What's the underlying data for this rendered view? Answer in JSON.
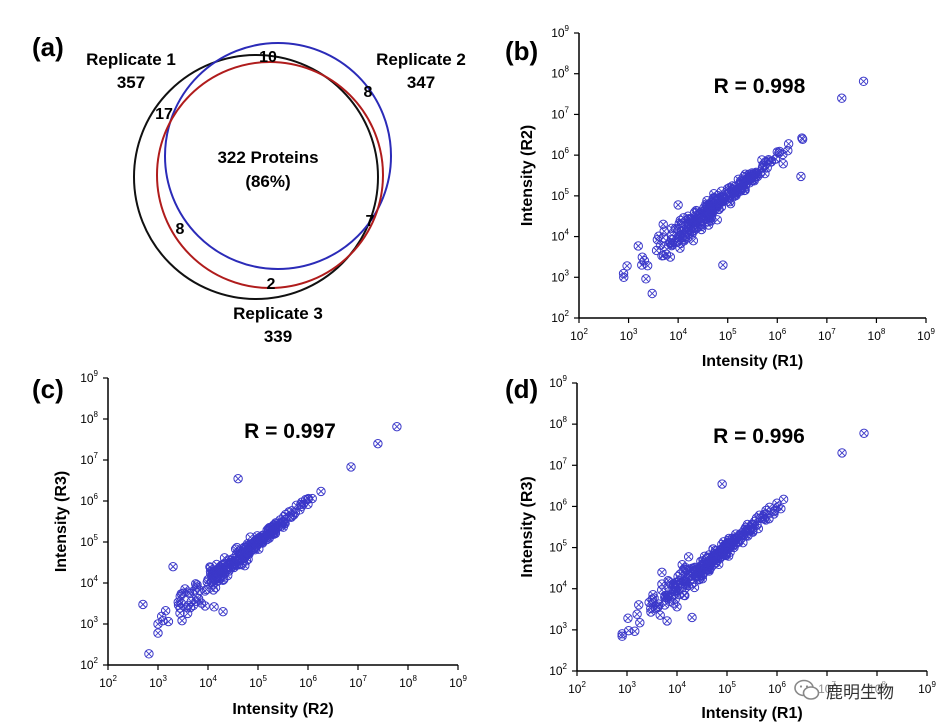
{
  "colors": {
    "rep1": "#111111",
    "rep2": "#2b2bb8",
    "rep3": "#b01c1c",
    "marker": "#3b38c9",
    "axis": "#000000",
    "text": "#000000"
  },
  "venn": {
    "panel": "(a)",
    "rep1": {
      "name": "Replicate 1",
      "count": "357"
    },
    "rep2": {
      "name": "Replicate 2",
      "count": "347"
    },
    "rep3": {
      "name": "Replicate 3",
      "count": "339"
    },
    "center_label": "322 Proteins",
    "center_pct": "(86%)",
    "regions": {
      "only_r1_top": "10",
      "r1_left": "17",
      "r2_right": "8",
      "r1_r3_left": "8",
      "r2_r3_right": "7",
      "r3_bottom": "2"
    }
  },
  "chart_data": [
    {
      "type": "scatter",
      "panel": "(b)",
      "title": "R = 0.998",
      "xlabel": "Intensity (R1)",
      "ylabel": "Intensity (R2)",
      "xscale": "log10",
      "yscale": "log10",
      "xlim": [
        100,
        1000000000
      ],
      "ylim": [
        100,
        1000000000
      ],
      "tick_exponents": [
        2,
        3,
        4,
        5,
        6,
        7,
        8,
        9
      ],
      "outliers": [
        {
          "x": 80000,
          "y": 2000
        },
        {
          "x": 5000,
          "y": 20000
        },
        {
          "x": 10000,
          "y": 60000
        },
        {
          "x": 3000,
          "y": 400
        },
        {
          "x": 3000000,
          "y": 300000
        }
      ],
      "ref_points": [
        {
          "x": 800,
          "y": 1000
        },
        {
          "x": 10000,
          "y": 15000
        },
        {
          "x": 100000,
          "y": 150000
        },
        {
          "x": 1000000,
          "y": 1200000
        },
        {
          "x": 20000000,
          "y": 25000000
        },
        {
          "x": 55000000,
          "y": 65000000
        }
      ]
    },
    {
      "type": "scatter",
      "panel": "(c)",
      "title": "R = 0.997",
      "xlabel": "Intensity (R2)",
      "ylabel": "Intensity (R3)",
      "xscale": "log10",
      "yscale": "log10",
      "xlim": [
        100,
        1000000000
      ],
      "ylim": [
        100,
        1000000000
      ],
      "tick_exponents": [
        2,
        3,
        4,
        5,
        6,
        7,
        8,
        9
      ],
      "outliers": [
        {
          "x": 40000,
          "y": 3500000
        },
        {
          "x": 20000,
          "y": 2000
        },
        {
          "x": 2000,
          "y": 25000
        },
        {
          "x": 1000,
          "y": 600
        },
        {
          "x": 500,
          "y": 3000
        }
      ],
      "ref_points": [
        {
          "x": 1000,
          "y": 1000
        },
        {
          "x": 10000,
          "y": 12000
        },
        {
          "x": 100000,
          "y": 120000
        },
        {
          "x": 1000000,
          "y": 1100000
        },
        {
          "x": 25000000,
          "y": 25000000
        },
        {
          "x": 60000000,
          "y": 65000000
        }
      ]
    },
    {
      "type": "scatter",
      "panel": "(d)",
      "title": "R = 0.996",
      "xlabel": "Intensity (R1)",
      "ylabel": "Intensity (R3)",
      "xscale": "log10",
      "yscale": "log10",
      "xlim": [
        100,
        1000000000
      ],
      "ylim": [
        100,
        1000000000
      ],
      "tick_exponents": [
        2,
        3,
        4,
        5,
        6,
        7,
        8,
        9
      ],
      "outliers": [
        {
          "x": 80000,
          "y": 3500000
        },
        {
          "x": 20000,
          "y": 2000
        },
        {
          "x": 5000,
          "y": 25000
        },
        {
          "x": 800,
          "y": 700
        }
      ],
      "ref_points": [
        {
          "x": 800,
          "y": 800
        },
        {
          "x": 10000,
          "y": 12000
        },
        {
          "x": 100000,
          "y": 120000
        },
        {
          "x": 1000000,
          "y": 1200000
        },
        {
          "x": 20000000,
          "y": 20000000
        },
        {
          "x": 55000000,
          "y": 60000000
        }
      ]
    }
  ],
  "watermark": {
    "text": "鹿明生物"
  }
}
